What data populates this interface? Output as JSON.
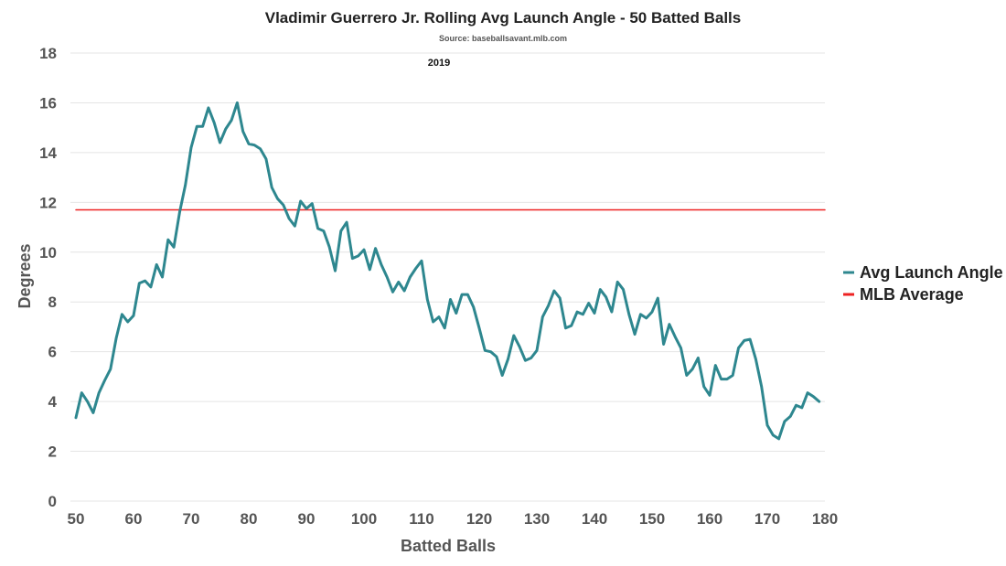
{
  "chart_data": {
    "type": "line",
    "title": "Vladimir Guerrero Jr. Rolling Avg Launch Angle - 50 Batted Balls",
    "subtitle": "Source: baseballsavant.mlb.com",
    "annotation": "2019",
    "xlabel": "Batted Balls",
    "ylabel": "Degrees",
    "xlim": [
      50,
      180
    ],
    "ylim": [
      0,
      18
    ],
    "xticks": [
      50,
      60,
      70,
      80,
      90,
      100,
      110,
      120,
      130,
      140,
      150,
      160,
      170,
      180
    ],
    "yticks": [
      0,
      2,
      4,
      6,
      8,
      10,
      12,
      14,
      16,
      18
    ],
    "grid": "horizontal",
    "legend_position": "right",
    "series": [
      {
        "name": "Avg Launch Angle",
        "color": "#2e878f",
        "x": [
          50,
          51,
          52,
          53,
          54,
          55,
          56,
          57,
          58,
          59,
          60,
          61,
          62,
          63,
          64,
          65,
          66,
          67,
          68,
          69,
          70,
          71,
          72,
          73,
          74,
          75,
          76,
          77,
          78,
          79,
          80,
          81,
          82,
          83,
          84,
          85,
          86,
          87,
          88,
          89,
          90,
          91,
          92,
          93,
          94,
          95,
          96,
          97,
          98,
          99,
          100,
          101,
          102,
          103,
          104,
          105,
          106,
          107,
          108,
          109,
          110,
          111,
          112,
          113,
          114,
          115,
          116,
          117,
          118,
          119,
          120,
          121,
          122,
          123,
          124,
          125,
          126,
          127,
          128,
          129,
          130,
          131,
          132,
          133,
          134,
          135,
          136,
          137,
          138,
          139,
          140,
          141,
          142,
          143,
          144,
          145,
          146,
          147,
          148,
          149,
          150,
          151,
          152,
          153,
          154,
          155,
          156,
          157,
          158,
          159,
          160,
          161,
          162,
          163,
          164,
          165,
          166,
          167,
          168,
          169,
          170,
          171,
          172,
          173,
          174,
          175,
          176,
          177,
          178,
          179
        ],
        "values": [
          3.35,
          4.35,
          4.0,
          3.55,
          4.35,
          4.85,
          5.3,
          6.55,
          7.5,
          7.2,
          7.45,
          8.75,
          8.85,
          8.6,
          9.5,
          9.0,
          10.5,
          10.2,
          11.6,
          12.7,
          14.2,
          15.05,
          15.05,
          15.8,
          15.2,
          14.4,
          14.95,
          15.3,
          16.0,
          14.85,
          14.35,
          14.3,
          14.15,
          13.75,
          12.6,
          12.15,
          11.9,
          11.35,
          11.05,
          12.05,
          11.75,
          11.95,
          10.95,
          10.85,
          10.2,
          9.25,
          10.85,
          11.2,
          9.75,
          9.85,
          10.1,
          9.3,
          10.15,
          9.5,
          9.0,
          8.4,
          8.8,
          8.45,
          9.0,
          9.35,
          9.65,
          8.1,
          7.2,
          7.4,
          6.95,
          8.1,
          7.55,
          8.3,
          8.3,
          7.8,
          6.95,
          6.05,
          6.0,
          5.8,
          5.05,
          5.7,
          6.65,
          6.2,
          5.65,
          5.75,
          6.05,
          7.4,
          7.85,
          8.45,
          8.15,
          6.95,
          7.05,
          7.6,
          7.5,
          7.95,
          7.55,
          8.5,
          8.2,
          7.6,
          8.8,
          8.5,
          7.5,
          6.7,
          7.5,
          7.35,
          7.6,
          8.15,
          6.3,
          7.1,
          6.6,
          6.15,
          5.05,
          5.3,
          5.75,
          4.6,
          4.25,
          5.45,
          4.9,
          4.9,
          5.05,
          6.15,
          6.45,
          6.5,
          5.7,
          4.6,
          3.05,
          2.65,
          2.5,
          3.2,
          3.4,
          3.85,
          3.75,
          4.35,
          4.2,
          4.0
        ]
      },
      {
        "name": "MLB Average",
        "color": "#ee2222",
        "x": [
          50,
          180
        ],
        "values": [
          11.7,
          11.7
        ]
      }
    ]
  }
}
